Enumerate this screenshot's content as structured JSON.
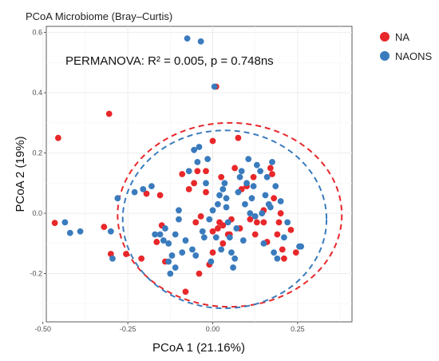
{
  "chart_data": {
    "type": "scatter",
    "title": "PCoA Microbiome (Bray–Curtis)",
    "xlabel": "PCoA 1 (21.16%)",
    "ylabel": "PCoA 2 (19%)",
    "xlim": [
      -0.49,
      0.41
    ],
    "ylim": [
      -0.36,
      0.62
    ],
    "xticks": [
      -0.5,
      -0.25,
      0.0,
      0.25
    ],
    "xtick_labels": [
      "-0.50",
      "-0.25",
      "0.00",
      "0.25"
    ],
    "yticks": [
      -0.2,
      0.0,
      0.2,
      0.4,
      0.6
    ],
    "ytick_labels": [
      "-0.2",
      "0.0",
      "0.2",
      "0.4",
      "0.6"
    ],
    "grid": true,
    "legend_position": "right",
    "annotation": "PERMANOVA: R² = 0.005, p = 0.748ns",
    "series": [
      {
        "name": "NA",
        "color": "#e8272a",
        "ellipse": {
          "cx": 0.05,
          "cy": -0.005,
          "rx": 0.33,
          "ry": 0.305
        },
        "points": [
          [
            -0.465,
            -0.032
          ],
          [
            -0.455,
            0.25
          ],
          [
            -0.32,
            -0.045
          ],
          [
            -0.305,
            0.33
          ],
          [
            -0.3,
            -0.135
          ],
          [
            -0.255,
            -0.135
          ],
          [
            -0.21,
            -0.15
          ],
          [
            -0.195,
            0.065
          ],
          [
            -0.165,
            -0.095
          ],
          [
            -0.155,
            0.06
          ],
          [
            -0.15,
            -0.04
          ],
          [
            -0.14,
            -0.16
          ],
          [
            -0.09,
            0.13
          ],
          [
            -0.08,
            -0.26
          ],
          [
            -0.07,
            0.08
          ],
          [
            -0.055,
            0.1
          ],
          [
            -0.05,
            -0.03
          ],
          [
            -0.045,
            0.14
          ],
          [
            -0.035,
            -0.01
          ],
          [
            -0.04,
            -0.2
          ],
          [
            -0.02,
            0.07
          ],
          [
            -0.02,
            0.14
          ],
          [
            -0.01,
            -0.17
          ],
          [
            0.0,
            -0.06
          ],
          [
            0.0,
            -0.13
          ],
          [
            0.01,
            0.42
          ],
          [
            0.015,
            -0.05
          ],
          [
            0.02,
            -0.03
          ],
          [
            0.025,
            0.12
          ],
          [
            0.03,
            -0.04
          ],
          [
            0.03,
            -0.1
          ],
          [
            0.045,
            -0.07
          ],
          [
            0.05,
            -0.07
          ],
          [
            0.055,
            -0.02
          ],
          [
            0.065,
            0.15
          ],
          [
            0.075,
            0.25
          ],
          [
            0.08,
            -0.05
          ],
          [
            0.085,
            0.08
          ],
          [
            0.1,
            0.09
          ],
          [
            0.11,
            -0.02
          ],
          [
            0.12,
            0.12
          ],
          [
            0.125,
            -0.07
          ],
          [
            0.13,
            -0.03
          ],
          [
            0.15,
            0.01
          ],
          [
            0.15,
            -0.03
          ],
          [
            0.16,
            -0.095
          ],
          [
            0.17,
            0.15
          ],
          [
            0.175,
            0.13
          ],
          [
            0.18,
            0.05
          ],
          [
            0.19,
            -0.07
          ],
          [
            0.195,
            -0.03
          ],
          [
            0.2,
            0.0
          ],
          [
            0.205,
            -0.12
          ],
          [
            0.21,
            -0.15
          ],
          [
            0.23,
            -0.055
          ],
          [
            0.245,
            -0.13
          ],
          [
            0.0,
            0.24
          ]
        ]
      },
      {
        "name": "NAONS",
        "color": "#3a7bbd",
        "ellipse": {
          "cx": 0.035,
          "cy": -0.02,
          "rx": 0.3,
          "ry": 0.295
        },
        "points": [
          [
            -0.435,
            -0.03
          ],
          [
            -0.42,
            -0.065
          ],
          [
            -0.39,
            -0.06
          ],
          [
            -0.3,
            -0.06
          ],
          [
            -0.295,
            -0.15
          ],
          [
            -0.28,
            0.05
          ],
          [
            -0.23,
            0.07
          ],
          [
            -0.205,
            0.08
          ],
          [
            -0.18,
            0.09
          ],
          [
            -0.17,
            -0.07
          ],
          [
            -0.155,
            -0.07
          ],
          [
            -0.145,
            -0.09
          ],
          [
            -0.14,
            -0.05
          ],
          [
            -0.13,
            -0.1
          ],
          [
            -0.13,
            -0.16
          ],
          [
            -0.125,
            -0.2
          ],
          [
            -0.12,
            -0.14
          ],
          [
            -0.11,
            -0.07
          ],
          [
            -0.11,
            -0.18
          ],
          [
            -0.1,
            -0.02
          ],
          [
            -0.1,
            0.01
          ],
          [
            -0.09,
            -0.13
          ],
          [
            -0.08,
            -0.09
          ],
          [
            -0.075,
            0.58
          ],
          [
            -0.07,
            0.14
          ],
          [
            -0.06,
            -0.12
          ],
          [
            -0.055,
            0.21
          ],
          [
            -0.05,
            -0.14
          ],
          [
            -0.045,
            0.17
          ],
          [
            -0.04,
            0.22
          ],
          [
            -0.035,
            0.57
          ],
          [
            -0.03,
            -0.06
          ],
          [
            -0.025,
            -0.08
          ],
          [
            -0.02,
            0.1
          ],
          [
            -0.015,
            0.18
          ],
          [
            -0.01,
            -0.02
          ],
          [
            -0.005,
            -0.16
          ],
          [
            0.0,
            0.01
          ],
          [
            0.005,
            0.42
          ],
          [
            0.01,
            -0.08
          ],
          [
            0.015,
            0.03
          ],
          [
            0.02,
            0.06
          ],
          [
            0.025,
            -0.12
          ],
          [
            0.03,
            0.08
          ],
          [
            0.035,
            0.1
          ],
          [
            0.04,
            0.02
          ],
          [
            0.04,
            0.05
          ],
          [
            0.045,
            -0.03
          ],
          [
            0.05,
            -0.08
          ],
          [
            0.055,
            -0.13
          ],
          [
            0.06,
            -0.18
          ],
          [
            0.065,
            -0.15
          ],
          [
            0.07,
            -0.05
          ],
          [
            0.075,
            0.07
          ],
          [
            0.08,
            0.12
          ],
          [
            0.085,
            0.14
          ],
          [
            0.09,
            -0.09
          ],
          [
            0.095,
            0.03
          ],
          [
            0.1,
            0.1
          ],
          [
            0.105,
            0.18
          ],
          [
            0.11,
            0.0
          ],
          [
            0.115,
            0.05
          ],
          [
            0.12,
            0.09
          ],
          [
            0.125,
            -0.01
          ],
          [
            0.13,
            0.16
          ],
          [
            0.14,
            0.14
          ],
          [
            0.145,
            0.0
          ],
          [
            0.15,
            -0.1
          ],
          [
            0.155,
            0.06
          ],
          [
            0.16,
            0.12
          ],
          [
            0.165,
            0.03
          ],
          [
            0.17,
            0.02
          ],
          [
            0.175,
            0.17
          ],
          [
            0.18,
            -0.13
          ],
          [
            0.185,
            0.09
          ],
          [
            0.19,
            -0.15
          ],
          [
            0.2,
            0.04
          ],
          [
            0.21,
            -0.08
          ],
          [
            0.22,
            -0.03
          ],
          [
            0.255,
            -0.11
          ],
          [
            0.26,
            -0.11
          ]
        ]
      }
    ]
  }
}
